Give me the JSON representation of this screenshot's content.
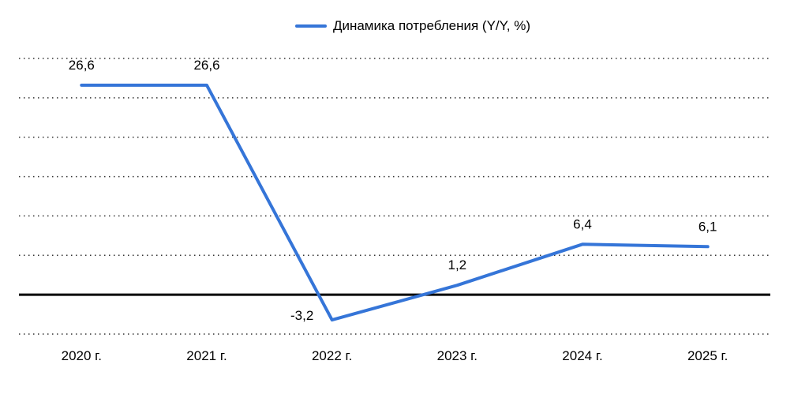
{
  "chart_data": {
    "type": "line",
    "categories": [
      "2020 г.",
      "2021 г.",
      "2022 г.",
      "2023 г.",
      "2024 г.",
      "2025 г."
    ],
    "series": [
      {
        "name": "Динамика потребления (Y/Y, %)",
        "values": [
          26.6,
          26.6,
          -3.2,
          1.2,
          6.4,
          6.1
        ],
        "labels": [
          "26,6",
          "26,6",
          "-3,2",
          "1,2",
          "6,4",
          "6,1"
        ],
        "color": "#3575d8"
      }
    ],
    "ylim": [
      -5,
      30
    ],
    "grid": "horizontal-dotted",
    "zero_line": true,
    "legend": "top-center"
  }
}
